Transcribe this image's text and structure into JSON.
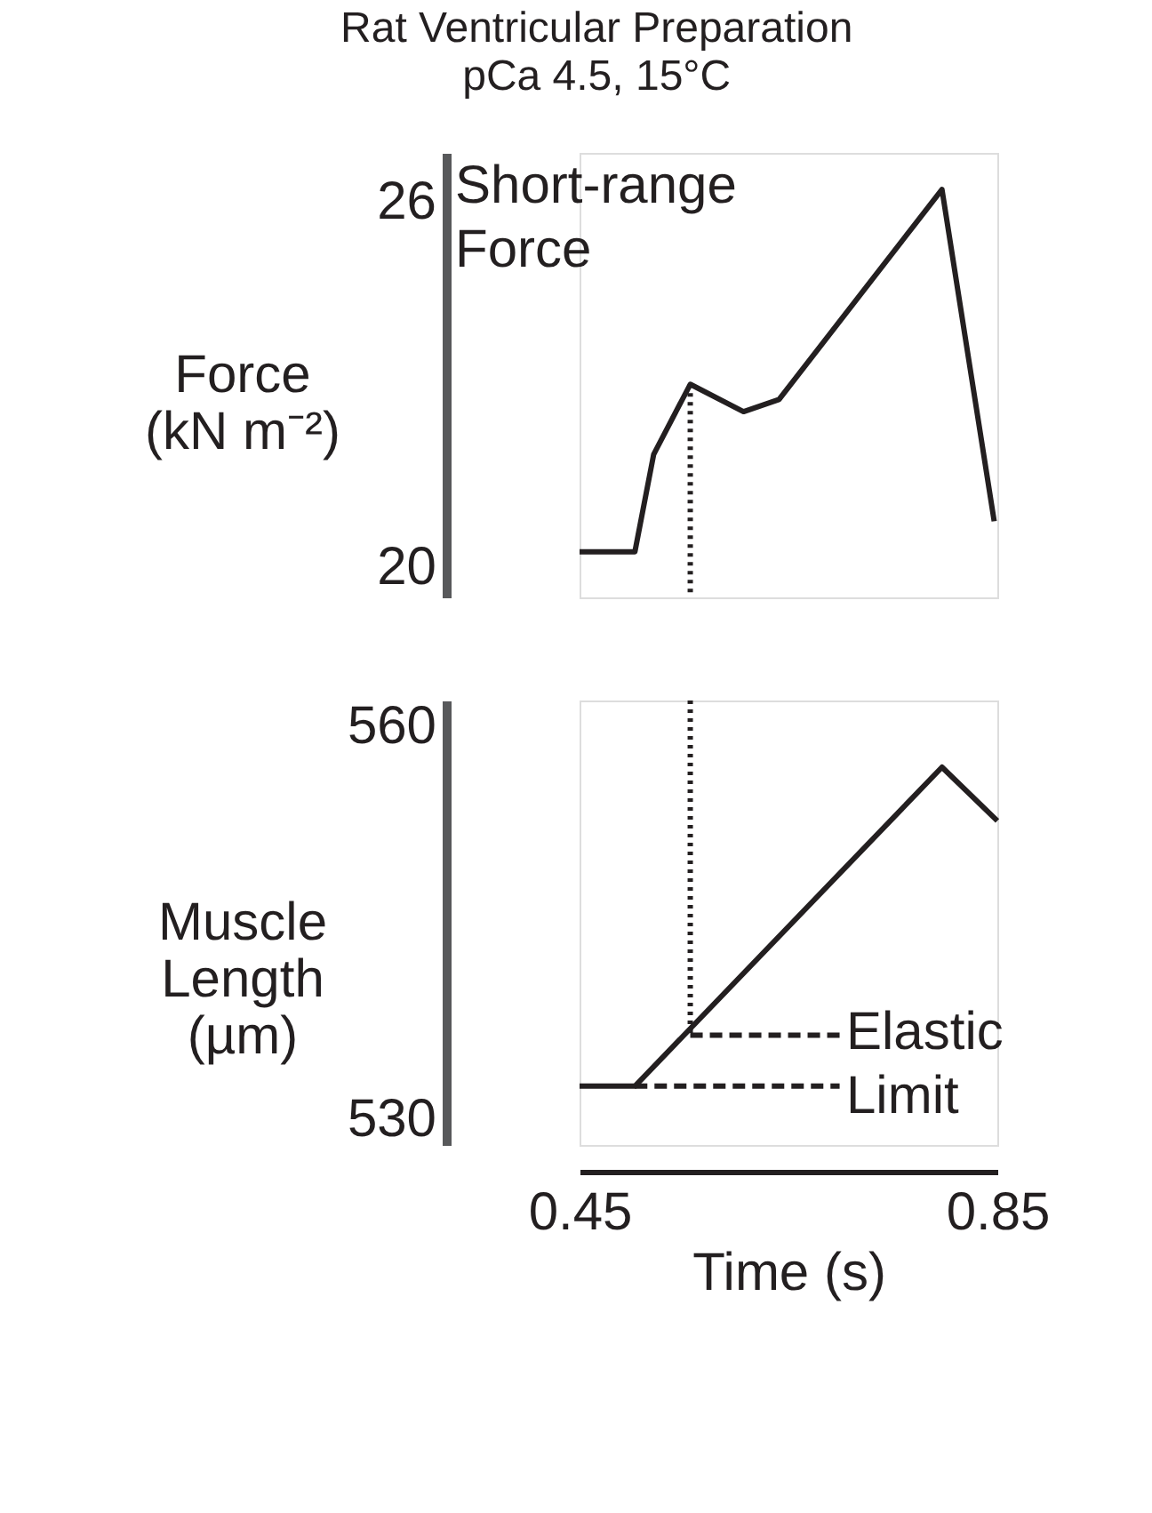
{
  "chart_data": [
    {
      "type": "line",
      "title": "Rat Ventricular Preparation",
      "subtitle": "pCa 4.5, 15°C",
      "ylabel": "Force (kN m⁻²)",
      "xlim": [
        0.45,
        0.85
      ],
      "ylim": [
        19.5,
        26.8
      ],
      "yticks": [
        20,
        26
      ],
      "tick_labels": "y",
      "grid": false,
      "legend": false,
      "marker": "none",
      "series": [
        {
          "color": "#231f20",
          "line_style": "solid",
          "x": [
            0.45,
            0.503,
            0.521,
            0.556,
            0.607,
            0.641,
            0.797,
            0.819,
            0.847
          ],
          "values": [
            20.25,
            20.25,
            21.85,
            23.0,
            22.55,
            22.75,
            26.2,
            23.8,
            20.75
          ]
        },
        {
          "color": "#231f20",
          "line_style": "dotted",
          "x": [
            0.556,
            0.556
          ],
          "values": [
            23.0,
            19.5
          ]
        }
      ],
      "annotations": [
        "Short-range Force"
      ]
    },
    {
      "type": "line",
      "ylabel": "Muscle Length (µm)",
      "xlabel": "Time (s)",
      "xlim": [
        0.45,
        0.85
      ],
      "xticks": [
        0.45,
        0.85
      ],
      "ylim": [
        528,
        562
      ],
      "yticks": [
        530,
        560
      ],
      "grid": false,
      "legend": false,
      "marker": "none",
      "series": [
        {
          "color": "#231f20",
          "line_style": "solid",
          "x": [
            0.45,
            0.503,
            0.797,
            0.85
          ],
          "values": [
            532.5,
            532.5,
            556.9,
            552.8
          ]
        },
        {
          "color": "#231f20",
          "line_style": "dotted",
          "x": [
            0.556,
            0.556
          ],
          "values": [
            562,
            536.4
          ]
        },
        {
          "color": "#231f20",
          "line_style": "dashed",
          "x": [
            0.556,
            0.699
          ],
          "values": [
            536.4,
            536.4
          ]
        },
        {
          "color": "#231f20",
          "line_style": "dashed",
          "x": [
            0.503,
            0.699
          ],
          "values": [
            532.5,
            532.5
          ]
        }
      ],
      "annotations": [
        "Elastic Limit"
      ]
    }
  ]
}
